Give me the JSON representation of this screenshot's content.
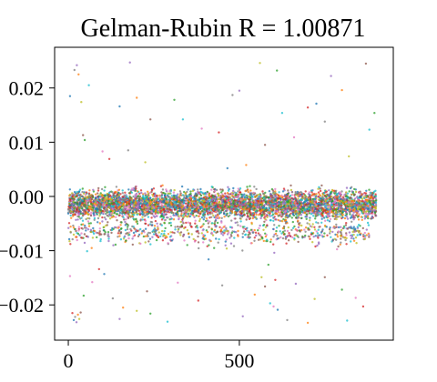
{
  "chart_data": {
    "type": "scatter",
    "title": "Gelman-Rubin R = 1.00871",
    "xlabel": "",
    "ylabel": "",
    "xlim": [
      -40,
      950
    ],
    "ylim": [
      -0.0265,
      0.0275
    ],
    "x_ticks": [
      0,
      500
    ],
    "x_tick_labels": [
      "0",
      "500"
    ],
    "y_ticks": [
      0.02,
      0.01,
      0.0,
      -0.01,
      -0.02
    ],
    "y_tick_labels": [
      "0.02",
      "0.01",
      "0.00",
      "−0.01",
      "−0.02"
    ],
    "grid": false,
    "legend": "none",
    "n_iterations": 900,
    "series_colors": [
      "#1f77b4",
      "#ff7f0e",
      "#2ca02c",
      "#d62728",
      "#9467bd",
      "#8c564b",
      "#e377c2",
      "#7f7f7f",
      "#bcbd22",
      "#17becf"
    ],
    "band": {
      "center": -0.0015,
      "spread": 0.0012
    },
    "lower_tail": {
      "center": -0.0065,
      "spread": 0.0012
    },
    "outliers": [
      {
        "x": 5,
        "y": 0.0185
      },
      {
        "x": 18,
        "y": 0.0233
      },
      {
        "x": 25,
        "y": 0.0242
      },
      {
        "x": 30,
        "y": 0.0225
      },
      {
        "x": 38,
        "y": 0.0174
      },
      {
        "x": 43,
        "y": 0.0113
      },
      {
        "x": 48,
        "y": 0.0104
      },
      {
        "x": 60,
        "y": 0.0205
      },
      {
        "x": 100,
        "y": 0.0083
      },
      {
        "x": 120,
        "y": 0.0069
      },
      {
        "x": 150,
        "y": 0.0166
      },
      {
        "x": 175,
        "y": 0.0085
      },
      {
        "x": 180,
        "y": 0.0247
      },
      {
        "x": 200,
        "y": 0.0182
      },
      {
        "x": 225,
        "y": 0.0063
      },
      {
        "x": 240,
        "y": 0.0142
      },
      {
        "x": 310,
        "y": 0.0178
      },
      {
        "x": 335,
        "y": 0.0142
      },
      {
        "x": 390,
        "y": 0.0125
      },
      {
        "x": 440,
        "y": 0.0118
      },
      {
        "x": 465,
        "y": 0.0052
      },
      {
        "x": 480,
        "y": 0.0187
      },
      {
        "x": 500,
        "y": 0.0195
      },
      {
        "x": 520,
        "y": 0.0058
      },
      {
        "x": 560,
        "y": 0.0246
      },
      {
        "x": 575,
        "y": 0.0095
      },
      {
        "x": 610,
        "y": 0.0232
      },
      {
        "x": 625,
        "y": 0.0154
      },
      {
        "x": 660,
        "y": 0.0109
      },
      {
        "x": 700,
        "y": 0.0164
      },
      {
        "x": 725,
        "y": 0.0171
      },
      {
        "x": 750,
        "y": 0.0138
      },
      {
        "x": 768,
        "y": 0.0222
      },
      {
        "x": 800,
        "y": 0.0196
      },
      {
        "x": 820,
        "y": 0.0074
      },
      {
        "x": 870,
        "y": 0.0245
      },
      {
        "x": 895,
        "y": 0.0154
      },
      {
        "x": 880,
        "y": 0.0123
      },
      {
        "x": 5,
        "y": -0.0147
      },
      {
        "x": 12,
        "y": -0.0215
      },
      {
        "x": 16,
        "y": -0.0228
      },
      {
        "x": 20,
        "y": -0.0222
      },
      {
        "x": 24,
        "y": -0.0232
      },
      {
        "x": 28,
        "y": -0.0218
      },
      {
        "x": 32,
        "y": -0.0226
      },
      {
        "x": 36,
        "y": -0.0214
      },
      {
        "x": 45,
        "y": -0.0183
      },
      {
        "x": 55,
        "y": -0.0101
      },
      {
        "x": 70,
        "y": -0.0158
      },
      {
        "x": 90,
        "y": -0.0134
      },
      {
        "x": 105,
        "y": -0.0143
      },
      {
        "x": 130,
        "y": -0.0188
      },
      {
        "x": 150,
        "y": -0.0226
      },
      {
        "x": 160,
        "y": -0.0205
      },
      {
        "x": 200,
        "y": -0.0211
      },
      {
        "x": 230,
        "y": -0.0175
      },
      {
        "x": 240,
        "y": -0.0216
      },
      {
        "x": 290,
        "y": -0.0231
      },
      {
        "x": 320,
        "y": -0.0159
      },
      {
        "x": 380,
        "y": -0.0192
      },
      {
        "x": 410,
        "y": -0.0116
      },
      {
        "x": 450,
        "y": -0.0164
      },
      {
        "x": 510,
        "y": -0.0221
      },
      {
        "x": 545,
        "y": -0.0181
      },
      {
        "x": 565,
        "y": -0.0149
      },
      {
        "x": 575,
        "y": -0.0166
      },
      {
        "x": 585,
        "y": -0.0126
      },
      {
        "x": 590,
        "y": -0.0197
      },
      {
        "x": 600,
        "y": -0.0203
      },
      {
        "x": 605,
        "y": -0.0154
      },
      {
        "x": 612,
        "y": -0.0209
      },
      {
        "x": 640,
        "y": -0.0228
      },
      {
        "x": 665,
        "y": -0.0161
      },
      {
        "x": 700,
        "y": -0.0233
      },
      {
        "x": 720,
        "y": -0.0189
      },
      {
        "x": 750,
        "y": -0.0149
      },
      {
        "x": 800,
        "y": -0.0172
      },
      {
        "x": 815,
        "y": -0.0229
      },
      {
        "x": 840,
        "y": -0.0187
      },
      {
        "x": 862,
        "y": -0.0203
      }
    ]
  }
}
